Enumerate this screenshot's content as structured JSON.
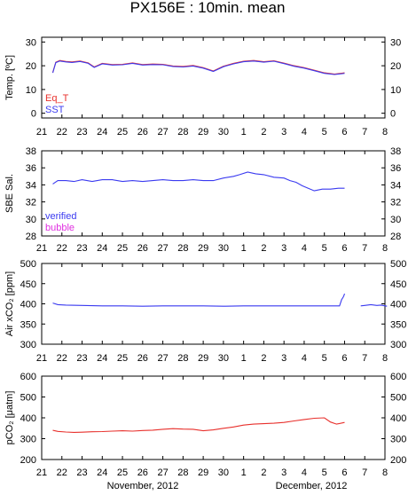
{
  "title": "PX156E : 10min. mean",
  "month_labels": [
    "November, 2012",
    "December, 2012"
  ],
  "x_tick_labels": [
    "21",
    "22",
    "23",
    "24",
    "25",
    "26",
    "27",
    "28",
    "29",
    "30",
    "1",
    "2",
    "3",
    "4",
    "5",
    "6",
    "7",
    "8"
  ],
  "colors": {
    "red": "#e8302c",
    "blue": "#3a3af0",
    "purple": "#7a2a9a",
    "magenta": "#e030e0"
  },
  "chart_data": [
    {
      "type": "line",
      "ylabel": "Temp. [ºC]",
      "ylim": [
        -2,
        32
      ],
      "yticks": [
        0,
        10,
        20,
        30
      ],
      "x_axis": "day index (0 = Nov 21, 2012; 17 = Dec 8, 2012)",
      "xlim": [
        0,
        17
      ],
      "series": [
        {
          "name": "Eq_T",
          "color": "#e8302c",
          "x": [
            0.55,
            0.7,
            0.9,
            1.2,
            1.5,
            1.9,
            2.3,
            2.6,
            3.0,
            3.5,
            4.0,
            4.5,
            5.0,
            5.5,
            6.0,
            6.5,
            7.0,
            7.5,
            8.0,
            8.5,
            9.0,
            9.5,
            10.0,
            10.5,
            11.0,
            11.5,
            12.0,
            12.5,
            13.0,
            13.5,
            14.0,
            14.5,
            14.9,
            15.0
          ],
          "y": [
            17.2,
            21.5,
            22.2,
            21.8,
            21.6,
            22.0,
            21.2,
            19.5,
            21.0,
            20.5,
            20.6,
            21.2,
            20.5,
            20.7,
            20.6,
            19.9,
            19.7,
            20.1,
            19.2,
            17.8,
            19.8,
            21.0,
            21.9,
            22.2,
            21.7,
            22.1,
            21.1,
            20.0,
            19.2,
            18.1,
            17.0,
            16.5,
            16.9,
            17.0
          ]
        },
        {
          "name": "SST",
          "color": "#3a3af0",
          "x": [
            0.55,
            0.7,
            0.9,
            1.2,
            1.5,
            1.9,
            2.3,
            2.6,
            3.0,
            3.5,
            4.0,
            4.5,
            5.0,
            5.5,
            6.0,
            6.5,
            7.0,
            7.5,
            8.0,
            8.5,
            9.0,
            9.5,
            10.0,
            10.5,
            11.0,
            11.5,
            12.0,
            12.5,
            13.0,
            13.5,
            14.0,
            14.5,
            14.9,
            15.0
          ],
          "y": [
            17.0,
            21.3,
            22.0,
            21.6,
            21.4,
            21.8,
            21.0,
            19.3,
            20.8,
            20.3,
            20.4,
            21.0,
            20.3,
            20.5,
            20.4,
            19.7,
            19.5,
            19.9,
            19.0,
            17.6,
            19.6,
            20.8,
            21.7,
            22.0,
            21.5,
            21.9,
            20.9,
            19.8,
            19.0,
            17.9,
            16.8,
            16.3,
            16.7,
            16.8
          ]
        }
      ],
      "legend_location": "lower-left"
    },
    {
      "type": "line",
      "ylabel": "SBE Sal.",
      "ylim": [
        28,
        38
      ],
      "yticks": [
        28,
        30,
        32,
        34,
        36,
        38
      ],
      "xlim": [
        0,
        17
      ],
      "series": [
        {
          "name": "verified",
          "color": "#3a3af0",
          "x": [
            0.55,
            0.8,
            1.2,
            1.6,
            2.0,
            2.5,
            3.0,
            3.5,
            4.0,
            4.5,
            5.0,
            5.5,
            6.0,
            6.5,
            7.0,
            7.5,
            8.0,
            8.5,
            9.0,
            9.5,
            9.8,
            10.2,
            10.6,
            11.0,
            11.5,
            12.0,
            12.3,
            12.6,
            12.9,
            13.2,
            13.5,
            13.9,
            14.3,
            14.7,
            15.0
          ],
          "y": [
            34.1,
            34.5,
            34.5,
            34.4,
            34.6,
            34.4,
            34.6,
            34.6,
            34.4,
            34.5,
            34.4,
            34.5,
            34.6,
            34.5,
            34.5,
            34.6,
            34.5,
            34.5,
            34.8,
            35.0,
            35.2,
            35.5,
            35.3,
            35.2,
            34.9,
            34.8,
            34.5,
            34.3,
            33.9,
            33.6,
            33.3,
            33.5,
            33.5,
            33.6,
            33.6
          ]
        },
        {
          "name": "bubble",
          "color": "#e030e0",
          "x": [],
          "y": []
        }
      ],
      "legend_location": "lower-left"
    },
    {
      "type": "line",
      "ylabel": "Air xCO₂ [ppm]",
      "ylim": [
        300,
        500
      ],
      "yticks": [
        300,
        350,
        400,
        450,
        500
      ],
      "xlim": [
        0,
        17
      ],
      "series": [
        {
          "name": "Air xCO2",
          "color": "#3a3af0",
          "x": [
            0.55,
            0.8,
            1.2,
            2.0,
            3.0,
            4.0,
            5.0,
            6.0,
            7.0,
            8.0,
            9.0,
            10.0,
            11.0,
            12.0,
            13.0,
            14.0,
            14.5,
            14.75,
            14.85,
            14.95,
            15.0,
            null,
            15.8,
            16.0,
            16.3,
            16.6,
            16.8,
            17.1
          ],
          "y": [
            402,
            398,
            397,
            396,
            395,
            395,
            394,
            395,
            395,
            395,
            394,
            395,
            395,
            395,
            395,
            395,
            395,
            395,
            410,
            418,
            425,
            null,
            395,
            396,
            398,
            396,
            397,
            394
          ]
        }
      ]
    },
    {
      "type": "line",
      "ylabel": "pCO₂ [μatm]",
      "ylim": [
        200,
        600
      ],
      "yticks": [
        200,
        300,
        400,
        500,
        600
      ],
      "xlim": [
        0,
        17
      ],
      "series": [
        {
          "name": "pCO2",
          "color": "#e8302c",
          "x": [
            0.55,
            0.8,
            1.2,
            1.6,
            2.0,
            2.5,
            3.0,
            3.5,
            4.0,
            4.5,
            5.0,
            5.5,
            6.0,
            6.5,
            7.0,
            7.5,
            8.0,
            8.5,
            9.0,
            9.5,
            10.0,
            10.5,
            11.0,
            11.5,
            12.0,
            12.5,
            13.0,
            13.5,
            14.0,
            14.3,
            14.6,
            15.0
          ],
          "y": [
            340,
            335,
            332,
            330,
            331,
            333,
            334,
            336,
            338,
            336,
            339,
            341,
            345,
            348,
            346,
            345,
            338,
            342,
            350,
            356,
            365,
            370,
            372,
            374,
            378,
            385,
            392,
            398,
            400,
            380,
            370,
            378
          ]
        }
      ]
    }
  ]
}
